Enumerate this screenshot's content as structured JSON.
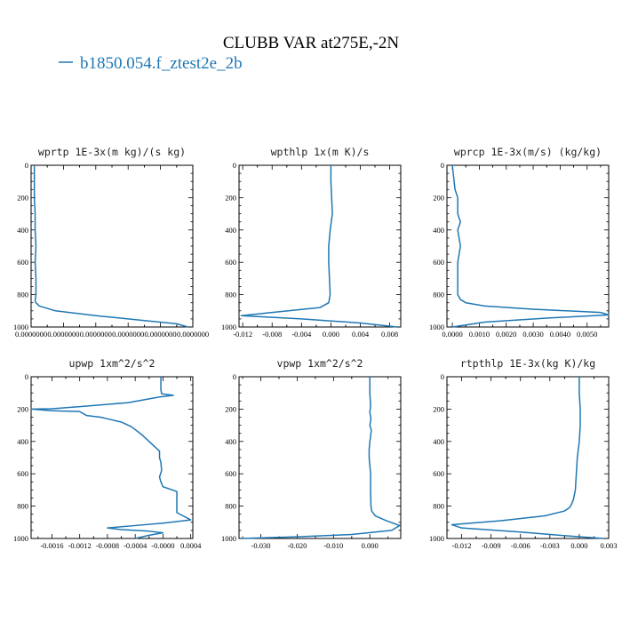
{
  "figure": {
    "title": "CLUBB VAR at275E,-2N",
    "legend": [
      {
        "label": "b1850.054.f_ztest2e_2b",
        "color": "#1f77b4"
      }
    ]
  },
  "chart_data": [
    {
      "type": "line",
      "title": "wprtp  1E-3x(m kg)/(s kg)",
      "xlim": [
        0,
        1
      ],
      "ylim": [
        1000,
        0
      ],
      "x_ticks": [
        0,
        0.2,
        0.4,
        0.6,
        0.8,
        1.0
      ],
      "x_tick_labels": [
        "0.0000000",
        "0.0000000",
        "0.0000000",
        "0.0000000",
        "0.0000000",
        "0.0000000"
      ],
      "y_ticks": [
        0,
        200,
        400,
        600,
        800,
        1000
      ],
      "series": [
        {
          "x": [
            0.02,
            0.02,
            0.02,
            0.025,
            0.025,
            0.03,
            0.025,
            0.03,
            0.03,
            0.025,
            0.03,
            0.05,
            0.15,
            0.4,
            0.7,
            0.9,
            0.97
          ],
          "y": [
            0,
            100,
            200,
            300,
            400,
            500,
            600,
            700,
            800,
            840,
            850,
            870,
            900,
            930,
            960,
            980,
            1000
          ]
        }
      ]
    },
    {
      "type": "line",
      "title": "wpthlp  1x(m K)/s",
      "xlim": [
        -0.0125,
        0.0095
      ],
      "ylim": [
        1000,
        0
      ],
      "x_ticks": [
        -0.012,
        -0.008,
        -0.004,
        0.0,
        0.004,
        0.008
      ],
      "x_tick_labels": [
        "-0.012",
        "-0.008",
        "-0.004",
        "0.000",
        "0.004",
        "0.008"
      ],
      "y_ticks": [
        0,
        200,
        400,
        600,
        800,
        1000
      ],
      "series": [
        {
          "x": [
            0.0,
            0.0,
            0.0001,
            0.0002,
            -0.0001,
            -0.0003,
            -0.0003,
            -0.0002,
            -0.0001,
            -0.0003,
            -0.0015,
            -0.008,
            -0.0122,
            -0.004,
            0.004,
            0.009
          ],
          "y": [
            0,
            100,
            200,
            300,
            400,
            500,
            600,
            700,
            800,
            850,
            880,
            910,
            930,
            950,
            975,
            1000
          ]
        }
      ]
    },
    {
      "type": "line",
      "title": "wprcp  1E-3x(m/s) (kg/kg)",
      "xlim": [
        -0.0002,
        0.0058
      ],
      "ylim": [
        1000,
        0
      ],
      "x_ticks": [
        0.0,
        0.001,
        0.002,
        0.003,
        0.004,
        0.005
      ],
      "x_tick_labels": [
        "0.0000",
        "0.0010",
        "0.0020",
        "0.0030",
        "0.0040",
        "0.0050"
      ],
      "y_ticks": [
        0,
        200,
        400,
        600,
        800,
        1000
      ],
      "series": [
        {
          "x": [
            0.0,
            0.0001,
            0.0002,
            0.0002,
            0.0003,
            0.0002,
            0.0003,
            0.0002,
            0.0002,
            0.0002,
            0.0003,
            0.0005,
            0.0012,
            0.003,
            0.0055,
            0.0058,
            0.0035,
            0.0012,
            0.0
          ],
          "y": [
            0,
            150,
            200,
            300,
            350,
            400,
            500,
            600,
            700,
            800,
            830,
            850,
            870,
            890,
            910,
            925,
            945,
            970,
            1000
          ]
        }
      ]
    },
    {
      "type": "line",
      "title": "upwp  1xm^2/s^2",
      "xlim": [
        -0.0019,
        0.00043
      ],
      "ylim": [
        1000,
        0
      ],
      "x_ticks": [
        -0.0016,
        -0.0012,
        -0.0008,
        -0.0004,
        0.0,
        0.0004
      ],
      "x_tick_labels": [
        "-0.0016",
        "-0.0012",
        "-0.0008",
        "-0.0004",
        "-0.0000",
        "0.0004"
      ],
      "y_ticks": [
        0,
        200,
        400,
        600,
        800,
        1000
      ],
      "series": [
        {
          "x": [
            -3e-05,
            -3e-05,
            -3e-05,
            -2e-05,
            0.00015,
            -5e-05,
            -0.0005,
            -0.0012,
            -0.0016,
            -0.0019,
            -0.0016,
            -0.0012,
            -0.0011,
            -0.0009,
            -0.0008,
            -0.0006,
            -0.00045,
            -0.0003,
            -0.00015,
            -5e-05,
            -5e-05,
            -3e-05,
            -2e-05,
            -5e-05,
            -3e-05,
            0.0,
            0.0002,
            0.0002,
            0.0002,
            0.0002,
            0.0004,
            0.0,
            -0.0004,
            -0.0008,
            -0.0006,
            -0.0002,
            0.0,
            -0.0002,
            -0.0004
          ],
          "y": [
            0,
            50,
            80,
            105,
            115,
            125,
            160,
            185,
            198,
            200,
            210,
            215,
            240,
            250,
            260,
            280,
            310,
            360,
            420,
            460,
            500,
            530,
            580,
            620,
            650,
            680,
            710,
            740,
            790,
            840,
            885,
            905,
            920,
            935,
            945,
            955,
            965,
            980,
            1000
          ]
        }
      ]
    },
    {
      "type": "line",
      "title": "vpwp  1xm^2/s^2",
      "xlim": [
        -0.036,
        0.0085
      ],
      "ylim": [
        1000,
        0
      ],
      "x_ticks": [
        -0.03,
        -0.02,
        -0.01,
        0.0
      ],
      "x_tick_labels": [
        "-0.030",
        "-0.020",
        "-0.010",
        "0.000"
      ],
      "y_ticks": [
        0,
        200,
        400,
        600,
        800,
        1000
      ],
      "series": [
        {
          "x": [
            0.0,
            0.0,
            0.0002,
            0.0,
            0.0003,
            0.0,
            0.0004,
            0.0002,
            0.0,
            -0.0002,
            -0.0002,
            0.0,
            0.0002,
            0.0002,
            0.0003,
            0.0005,
            0.0015,
            0.0045,
            0.0082,
            0.006,
            -0.005,
            -0.02,
            -0.0355
          ],
          "y": [
            0,
            100,
            180,
            220,
            260,
            300,
            330,
            370,
            400,
            450,
            500,
            550,
            600,
            700,
            800,
            830,
            860,
            890,
            920,
            950,
            975,
            990,
            1000
          ]
        }
      ]
    },
    {
      "type": "line",
      "title": "rtpthlp  1E-3x(kg K)/kg",
      "xlim": [
        -0.0135,
        0.003
      ],
      "ylim": [
        1000,
        0
      ],
      "x_ticks": [
        -0.012,
        -0.009,
        -0.006,
        -0.003,
        0.0,
        0.003
      ],
      "x_tick_labels": [
        "-0.012",
        "-0.009",
        "-0.006",
        "-0.003",
        "0.000",
        "0.003"
      ],
      "y_ticks": [
        0,
        200,
        400,
        600,
        800,
        1000
      ],
      "series": [
        {
          "x": [
            0.0,
            0.0,
            0.0001,
            0.0001,
            0.0,
            -0.0002,
            -0.0003,
            -0.0004,
            -0.0006,
            -0.0008,
            -0.001,
            -0.0015,
            -0.0035,
            -0.008,
            -0.013,
            -0.012,
            -0.006,
            -0.001,
            0.0025
          ],
          "y": [
            0,
            100,
            200,
            300,
            400,
            500,
            600,
            700,
            760,
            790,
            810,
            830,
            860,
            890,
            915,
            935,
            960,
            985,
            1000
          ]
        }
      ]
    }
  ]
}
